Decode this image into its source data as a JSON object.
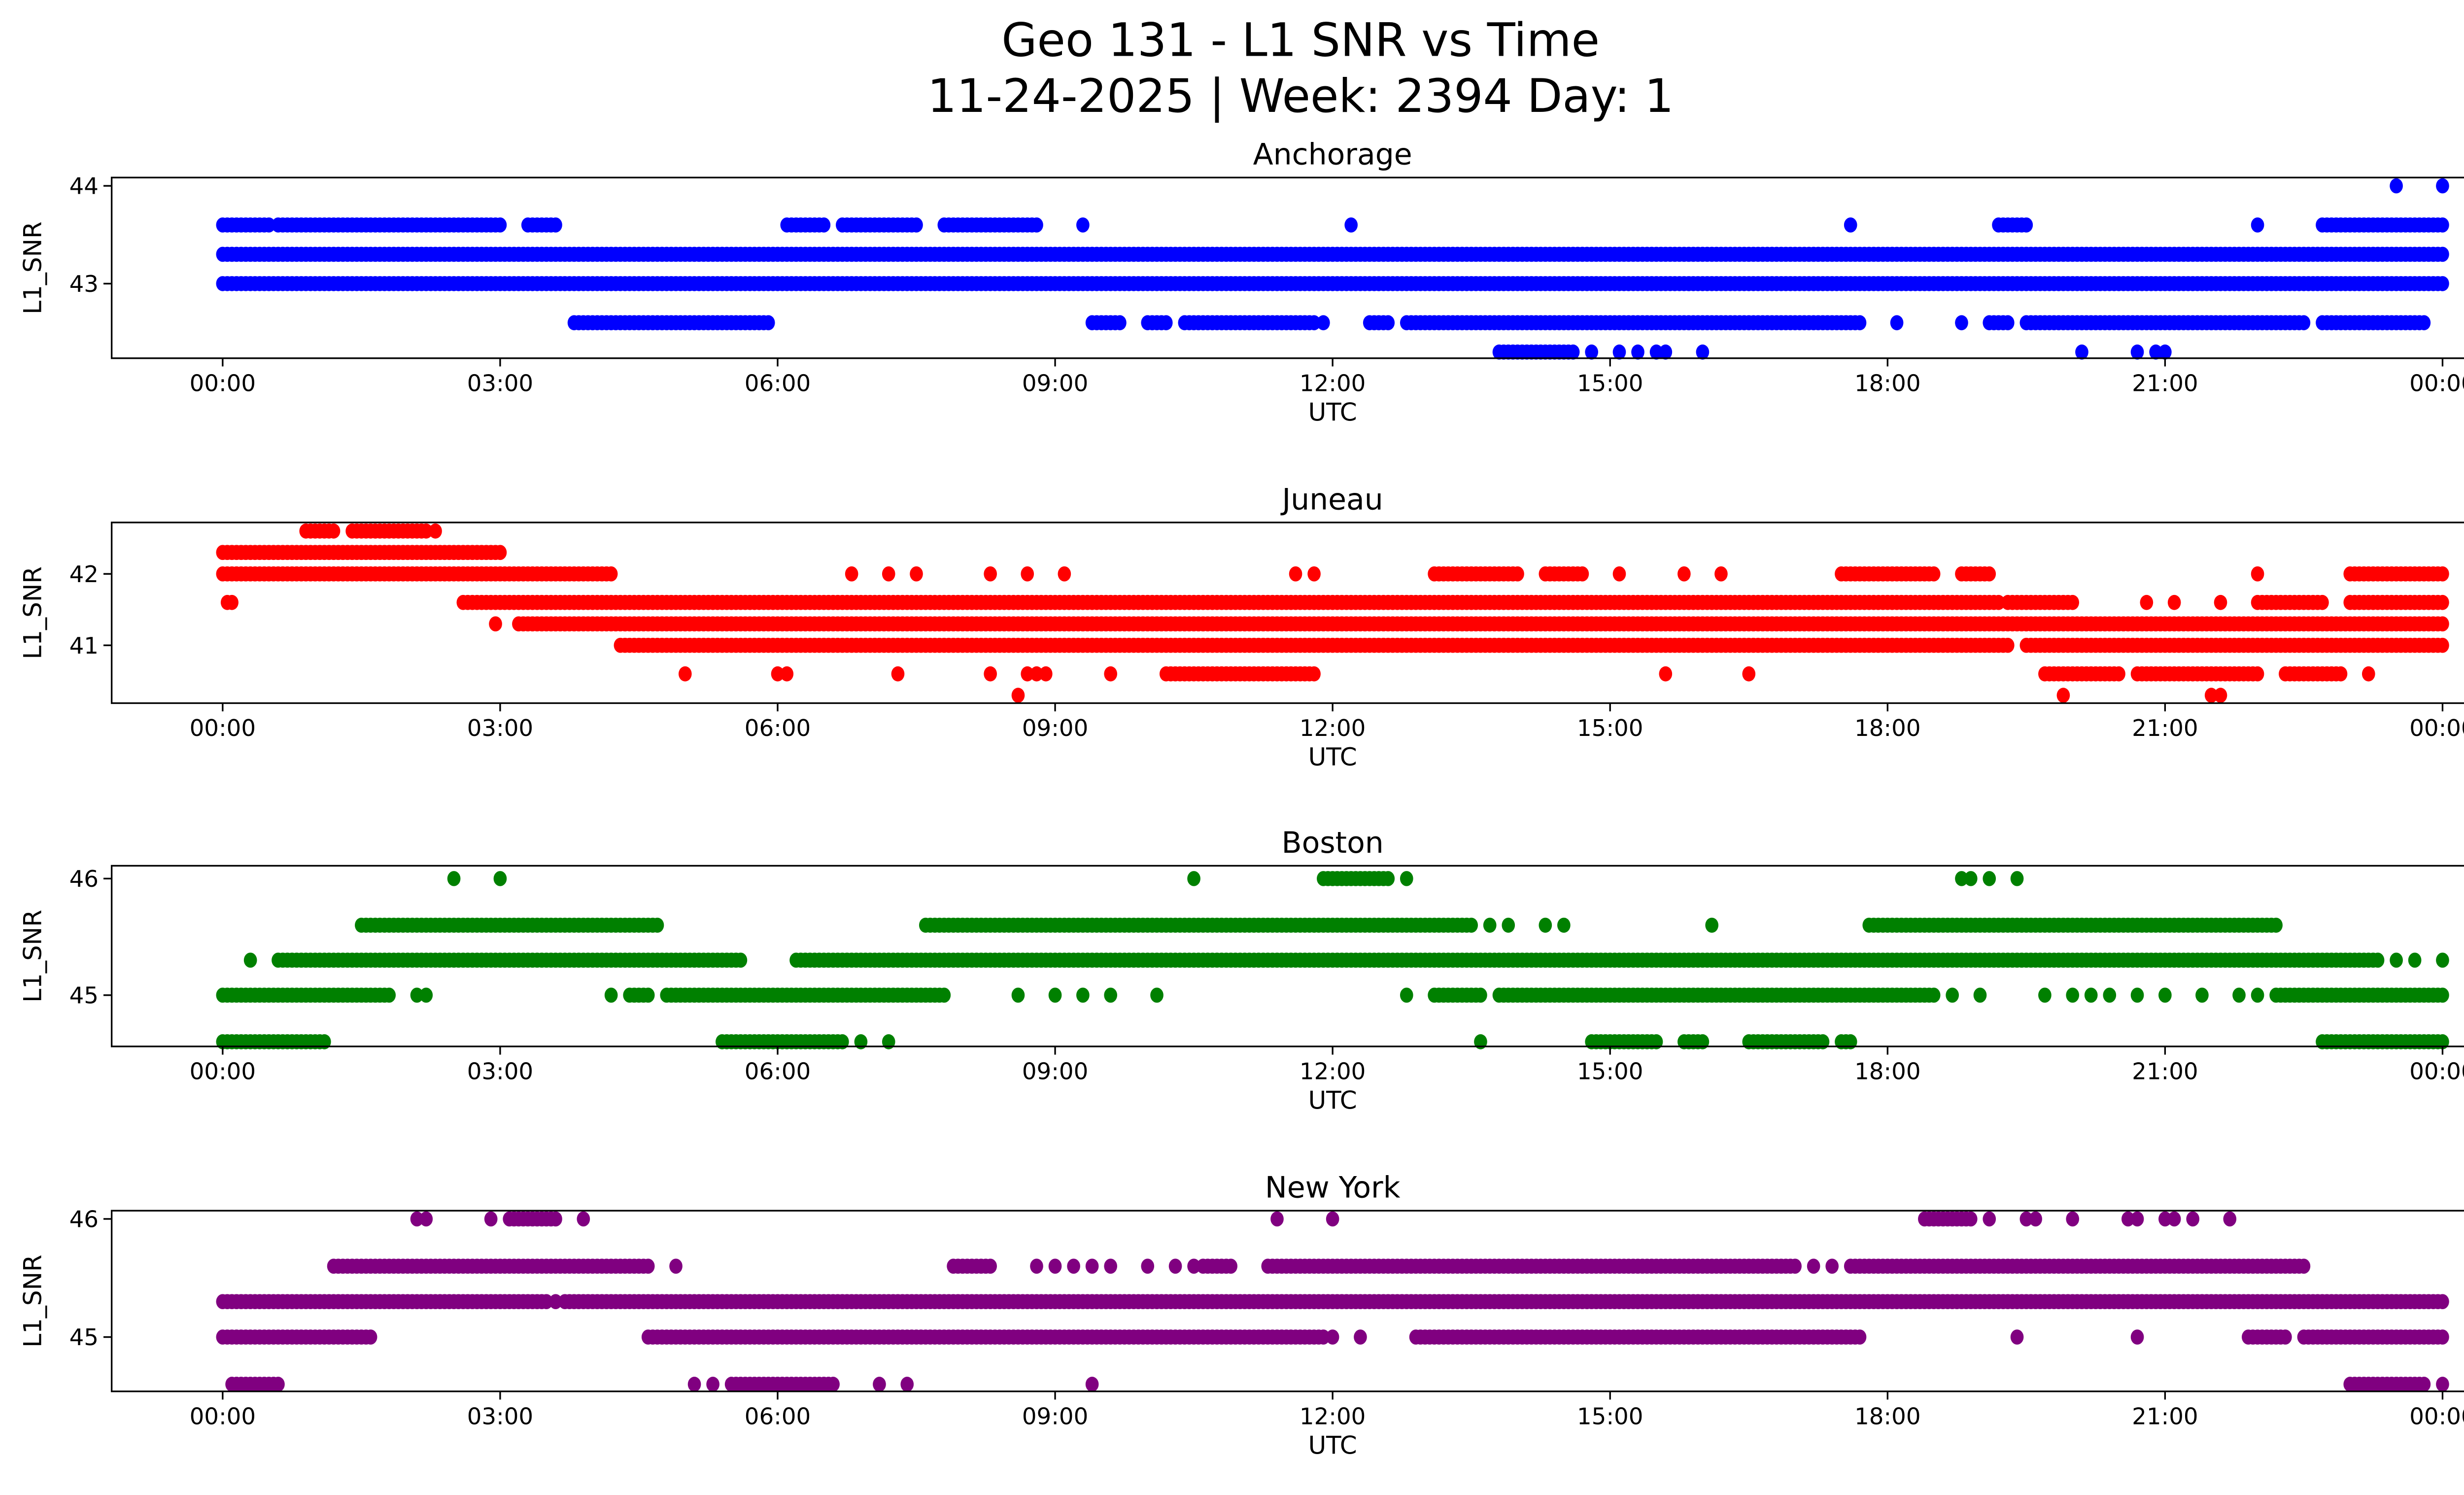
{
  "title_line1": "Geo 131 - L1 SNR vs Time",
  "title_line2": "11-24-2025 | Week: 2394 Day: 1",
  "chart_data": [
    {
      "type": "scatter",
      "title": "Anchorage",
      "xlabel": "UTC",
      "ylabel": "L1_SNR",
      "color": "#0000ff",
      "xlim_hours": [
        -1.2,
        25.2
      ],
      "ylim": [
        42.237,
        44.085
      ],
      "yticks": [
        43,
        44
      ],
      "levels": [
        {
          "snr": 44.0,
          "runs": [],
          "points": [
            23.5,
            24.0
          ]
        },
        {
          "snr": 43.6,
          "runs": [
            [
              0,
              0.5
            ],
            [
              0.6,
              3.0
            ],
            [
              3.3,
              3.6
            ],
            [
              6.1,
              6.5
            ],
            [
              6.7,
              7.5
            ],
            [
              7.8,
              8.8
            ],
            [
              19.2,
              19.5
            ],
            [
              22.7,
              24
            ]
          ],
          "points": [
            9.3,
            12.2,
            17.6,
            22.0
          ]
        },
        {
          "snr": 43.3,
          "runs": [
            [
              0,
              24
            ]
          ],
          "points": []
        },
        {
          "snr": 43.0,
          "runs": [
            [
              0,
              24
            ]
          ],
          "points": []
        },
        {
          "snr": 42.6,
          "runs": [
            [
              3.8,
              5.9
            ],
            [
              9.4,
              9.7
            ],
            [
              10.0,
              10.2
            ],
            [
              10.4,
              11.8
            ],
            [
              12.4,
              12.6
            ],
            [
              12.8,
              17.7
            ],
            [
              19.1,
              19.3
            ],
            [
              19.5,
              22.5
            ],
            [
              22.7,
              23.8
            ]
          ],
          "points": [
            11.9,
            18.1,
            18.8
          ]
        },
        {
          "snr": 42.3,
          "runs": [
            [
              13.8,
              14.6
            ]
          ],
          "points": [
            14.8,
            15.1,
            15.3,
            15.5,
            15.6,
            16.0,
            20.1,
            20.7,
            20.9,
            21.0
          ]
        }
      ]
    },
    {
      "type": "scatter",
      "title": "Juneau",
      "xlabel": "UTC",
      "ylabel": "L1_SNR",
      "color": "#ff0000",
      "xlim_hours": [
        -1.2,
        25.2
      ],
      "ylim": [
        40.19,
        42.72
      ],
      "yticks": [
        41,
        42
      ],
      "levels": [
        {
          "snr": 42.6,
          "runs": [
            [
              0.9,
              1.2
            ],
            [
              1.4,
              2.2
            ]
          ],
          "points": [
            2.3
          ]
        },
        {
          "snr": 42.3,
          "runs": [
            [
              0,
              3.0
            ]
          ],
          "points": []
        },
        {
          "snr": 42.0,
          "runs": [
            [
              0,
              4.2
            ],
            [
              13.1,
              14.0
            ],
            [
              14.3,
              14.7
            ],
            [
              17.5,
              18.5
            ],
            [
              18.8,
              19.1
            ],
            [
              23.0,
              24
            ]
          ],
          "points": [
            6.8,
            7.2,
            7.5,
            8.3,
            8.7,
            9.1,
            11.6,
            11.8,
            15.1,
            15.8,
            16.2,
            22.0
          ]
        },
        {
          "snr": 41.6,
          "runs": [
            [
              2.6,
              19.2
            ],
            [
              19.3,
              20.0
            ],
            [
              22.0,
              22.7
            ],
            [
              23.0,
              24
            ]
          ],
          "points": [
            0.05,
            0.1,
            20.8,
            21.1,
            21.6
          ]
        },
        {
          "snr": 41.3,
          "runs": [
            [
              3.2,
              24
            ]
          ],
          "points": [
            2.95
          ]
        },
        {
          "snr": 41.0,
          "runs": [
            [
              4.3,
              19.3
            ],
            [
              19.5,
              24
            ]
          ],
          "points": []
        },
        {
          "snr": 40.6,
          "runs": [
            [
              10.2,
              11.8
            ],
            [
              19.7,
              20.5
            ],
            [
              20.7,
              22.0
            ],
            [
              22.3,
              22.9
            ]
          ],
          "points": [
            5.0,
            6.0,
            6.1,
            7.3,
            8.3,
            8.7,
            8.8,
            8.9,
            9.6,
            15.6,
            16.5,
            23.2
          ]
        },
        {
          "snr": 40.3,
          "runs": [],
          "points": [
            8.6,
            19.9,
            21.5,
            21.6
          ]
        }
      ]
    },
    {
      "type": "scatter",
      "title": "Boston",
      "xlabel": "UTC",
      "ylabel": "L1_SNR",
      "color": "#008000",
      "xlim_hours": [
        -1.2,
        25.2
      ],
      "ylim": [
        44.56,
        46.11
      ],
      "yticks": [
        45,
        46
      ],
      "levels": [
        {
          "snr": 46.0,
          "runs": [
            [
              11.9,
              12.6
            ]
          ],
          "points": [
            2.5,
            3.0,
            10.5,
            12.8,
            18.8,
            18.9,
            19.1,
            19.4
          ]
        },
        {
          "snr": 45.6,
          "runs": [
            [
              1.5,
              4.7
            ],
            [
              7.6,
              13.5
            ],
            [
              17.8,
              22.2
            ]
          ],
          "points": [
            13.7,
            13.9,
            14.3,
            14.5,
            16.1
          ]
        },
        {
          "snr": 45.3,
          "runs": [
            [
              0.6,
              5.6
            ],
            [
              6.2,
              23.3
            ]
          ],
          "points": [
            0.3,
            23.5,
            23.7,
            24.0
          ]
        },
        {
          "snr": 45.0,
          "runs": [
            [
              0,
              1.8
            ],
            [
              4.4,
              4.6
            ],
            [
              4.8,
              7.8
            ],
            [
              13.1,
              13.6
            ],
            [
              13.8,
              18.5
            ],
            [
              22.2,
              24
            ]
          ],
          "points": [
            2.1,
            2.2,
            4.2,
            8.6,
            9.0,
            9.3,
            9.6,
            10.1,
            12.8,
            18.7,
            19.0,
            19.7,
            20.0,
            20.2,
            20.4,
            20.7,
            21.0,
            21.4,
            21.8,
            22.0
          ]
        },
        {
          "snr": 44.6,
          "runs": [
            [
              0,
              1.1
            ],
            [
              5.4,
              6.7
            ],
            [
              14.8,
              15.5
            ],
            [
              15.8,
              16.0
            ],
            [
              16.5,
              17.3
            ],
            [
              17.5,
              17.6
            ],
            [
              22.7,
              24
            ]
          ],
          "points": [
            6.9,
            7.2,
            13.6
          ]
        }
      ]
    },
    {
      "type": "scatter",
      "title": "New York",
      "xlabel": "UTC",
      "ylabel": "L1_SNR",
      "color": "#800080",
      "xlim_hours": [
        -1.2,
        25.2
      ],
      "ylim": [
        44.54,
        46.07
      ],
      "yticks": [
        45,
        46
      ],
      "levels": [
        {
          "snr": 46.0,
          "runs": [
            [
              3.1,
              3.6
            ],
            [
              18.4,
              18.9
            ]
          ],
          "points": [
            2.1,
            2.2,
            2.9,
            3.9,
            11.4,
            12.0,
            19.1,
            19.5,
            19.6,
            20.0,
            20.6,
            20.7,
            21.0,
            21.1,
            21.3,
            21.7
          ]
        },
        {
          "snr": 45.6,
          "runs": [
            [
              1.2,
              4.6
            ],
            [
              7.9,
              8.3
            ],
            [
              10.6,
              10.9
            ],
            [
              11.3,
              17.0
            ],
            [
              17.6,
              22.5
            ]
          ],
          "points": [
            4.9,
            8.8,
            9.0,
            9.2,
            9.4,
            9.6,
            10.0,
            10.3,
            10.5,
            17.2,
            17.4
          ]
        },
        {
          "snr": 45.3,
          "runs": [
            [
              0,
              3.5
            ],
            [
              3.7,
              24
            ]
          ],
          "points": [
            3.6
          ]
        },
        {
          "snr": 45.0,
          "runs": [
            [
              0,
              1.6
            ],
            [
              4.6,
              11.9
            ],
            [
              12.9,
              17.7
            ],
            [
              21.9,
              22.3
            ],
            [
              22.5,
              24
            ]
          ],
          "points": [
            12.0,
            12.3,
            19.4,
            20.7
          ]
        },
        {
          "snr": 44.6,
          "runs": [
            [
              0.1,
              0.6
            ],
            [
              5.5,
              6.6
            ],
            [
              23.0,
              23.8
            ]
          ],
          "points": [
            5.1,
            5.3,
            7.1,
            7.4,
            9.4,
            24.0
          ]
        }
      ]
    }
  ],
  "xtick_labels": [
    "00:00",
    "03:00",
    "06:00",
    "09:00",
    "12:00",
    "15:00",
    "18:00",
    "21:00",
    "00:00"
  ]
}
